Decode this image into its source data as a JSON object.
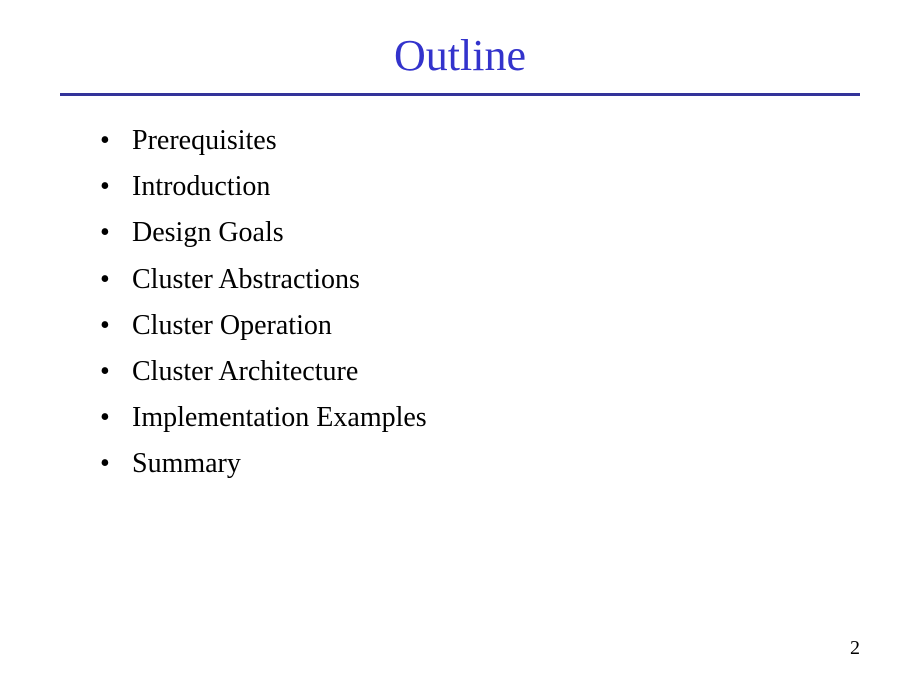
{
  "slide": {
    "title": "Outline",
    "title_color": "#3333cc",
    "title_fontsize": 44,
    "divider_color": "#333399",
    "divider_width": 3,
    "background_color": "#ffffff",
    "bullet_color": "#000000",
    "bullet_fontsize": 28,
    "font_family": "Times New Roman",
    "items": [
      "Prerequisites",
      "Introduction",
      "Design Goals",
      "Cluster Abstractions",
      "Cluster Operation",
      "Cluster Architecture",
      "Implementation Examples",
      "Summary"
    ],
    "page_number": "2",
    "page_number_fontsize": 20
  }
}
